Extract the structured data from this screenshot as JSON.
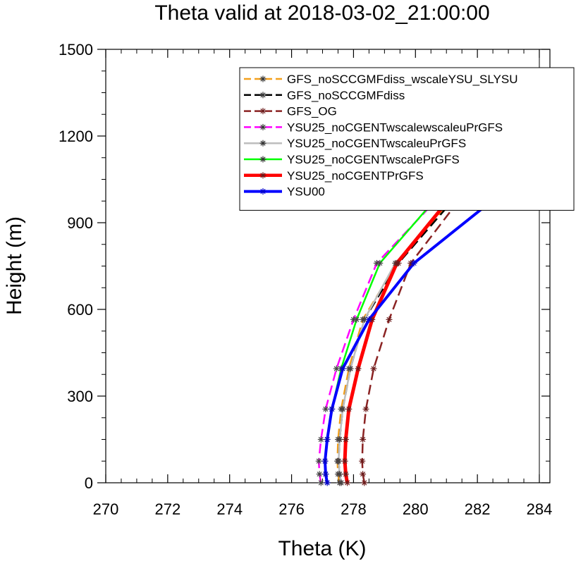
{
  "chart_data": {
    "type": "line",
    "title": "Theta valid at 2018-03-02_21:00:00",
    "xlabel": "Theta (K)",
    "ylabel": "Height (m)",
    "xlim": [
      270,
      284
    ],
    "ylim": [
      0,
      1500
    ],
    "xticks": [
      270,
      272,
      274,
      276,
      278,
      280,
      282,
      284
    ],
    "yticks": [
      0,
      300,
      600,
      900,
      1200,
      1500
    ],
    "grid": false,
    "legend_position": "top-right",
    "heights": [
      0,
      30,
      75,
      150,
      255,
      395,
      565,
      760,
      970,
      1200
    ],
    "series": [
      {
        "name": "GFS_noSCCGMFdiss_wscaleYSU_SLYSU",
        "color": "#f4a01c",
        "dash": "dashed",
        "width": 2.5,
        "x": [
          277.55,
          277.5,
          277.48,
          277.5,
          277.6,
          277.85,
          278.3,
          279.4,
          281.1,
          283.8
        ]
      },
      {
        "name": "GFS_noSCCGMFdiss",
        "color": "#000000",
        "dash": "dashed",
        "width": 2.5,
        "x": [
          277.6,
          277.55,
          277.52,
          277.55,
          277.65,
          277.9,
          278.35,
          279.45,
          281.15,
          283.85
        ]
      },
      {
        "name": "GFS_OG",
        "color": "#8b2323",
        "dash": "dashed",
        "width": 2.5,
        "x": [
          278.35,
          278.3,
          278.28,
          278.3,
          278.4,
          278.65,
          279.15,
          279.85,
          281.35,
          283.95
        ]
      },
      {
        "name": "YSU25_noCGENTwscalewscaleuPrGFS",
        "color": "#ff00ff",
        "dash": "dashed",
        "width": 2.5,
        "x": [
          276.95,
          276.9,
          276.88,
          276.95,
          277.1,
          277.45,
          278.0,
          278.75,
          280.6,
          284.05
        ]
      },
      {
        "name": "YSU25_noCGENTwscaleuPrGFS",
        "color": "#bebebe",
        "dash": "solid",
        "width": 2.5,
        "x": [
          277.6,
          277.55,
          277.52,
          277.55,
          277.65,
          277.9,
          278.35,
          279.35,
          281.05,
          283.75
        ]
      },
      {
        "name": "YSU25_noCGENTwscalePrGFS",
        "color": "#00ff00",
        "dash": "solid",
        "width": 2.5,
        "x": [
          277.15,
          277.1,
          277.08,
          277.15,
          277.3,
          277.6,
          278.1,
          278.85,
          280.55,
          284.0
        ]
      },
      {
        "name": "YSU25_noCGENTPrGFS",
        "color": "#ff0000",
        "dash": "solid",
        "width": 5,
        "x": [
          277.8,
          277.75,
          277.72,
          277.75,
          277.85,
          278.15,
          278.6,
          279.4,
          281.0,
          283.9
        ]
      },
      {
        "name": "YSU00",
        "color": "#0000ff",
        "dash": "solid",
        "width": 4,
        "x": [
          277.15,
          277.1,
          277.08,
          277.15,
          277.3,
          277.65,
          278.5,
          279.95,
          282.4,
          284.0
        ]
      }
    ]
  }
}
